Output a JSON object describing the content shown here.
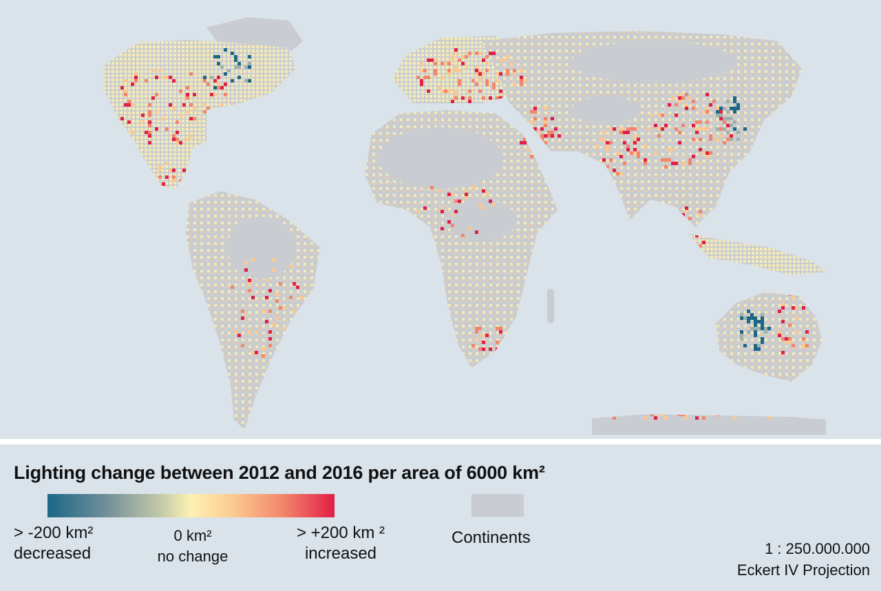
{
  "map": {
    "colors": {
      "ocean": "#dae3ea",
      "land": "#c9ccd1",
      "no_change": "#fdf1b2",
      "increase_low": "#fbc890",
      "increase_mid": "#f2866b",
      "increase_high": "#e11f47",
      "decrease_low": "#9fb1a8",
      "decrease_high": "#1c6788"
    }
  },
  "legend": {
    "title": "Lighting change between 2012 and 2016 per area of 6000 km²",
    "min_value": "> -200 km²",
    "min_desc": "decreased",
    "mid_value": "0 km²",
    "mid_desc": "no change",
    "max_value": "> +200 km ²",
    "max_desc": "increased",
    "continents_label": "Continents"
  },
  "scale": {
    "ratio": "1 : 250.000.000",
    "projection": "Eckert IV Projection"
  }
}
